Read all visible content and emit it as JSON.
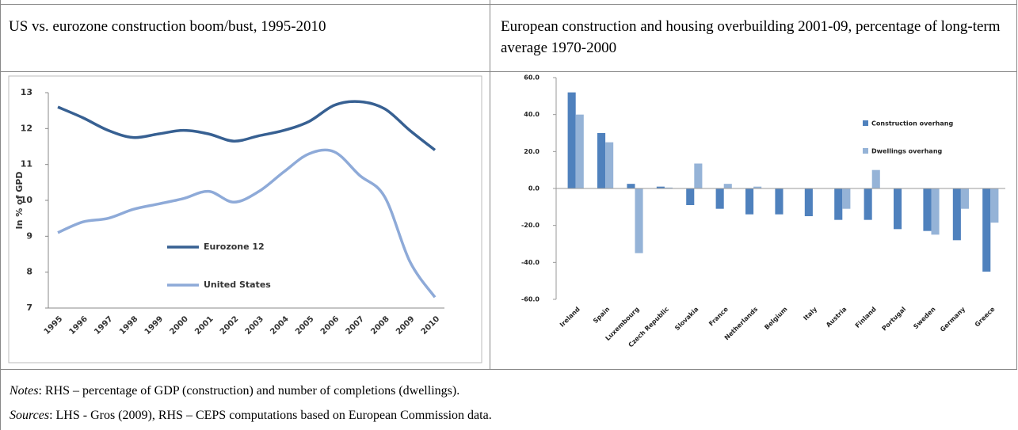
{
  "chart_data": [
    {
      "type": "line",
      "title": "US vs. eurozone construction boom/bust, 1995-2010",
      "y_label": "In % of GPD",
      "categories": [
        "1995",
        "1996",
        "1997",
        "1998",
        "1999",
        "2000",
        "2001",
        "2002",
        "2003",
        "2004",
        "2005",
        "2006",
        "2007",
        "2008",
        "2009",
        "2010"
      ],
      "series": [
        {
          "name": "Eurozone 12",
          "color": "#376092",
          "values": [
            12.6,
            12.3,
            11.95,
            11.75,
            11.85,
            11.95,
            11.85,
            11.65,
            11.8,
            11.95,
            12.2,
            12.65,
            12.75,
            12.55,
            11.95,
            11.4
          ]
        },
        {
          "name": "United States",
          "color": "#8eaad8",
          "values": [
            9.1,
            9.4,
            9.5,
            9.75,
            9.9,
            10.05,
            10.25,
            9.95,
            10.25,
            10.8,
            11.3,
            11.35,
            10.7,
            10.1,
            8.3,
            7.3
          ]
        }
      ],
      "ylim": [
        7,
        13
      ],
      "yticks": [
        7,
        8,
        9,
        10,
        11,
        12,
        13
      ],
      "grid": false,
      "legend": "left"
    },
    {
      "type": "bar",
      "title": "European construction and housing overbuilding 2001-09, percentage of long-term average 1970-2000",
      "categories": [
        "Ireland",
        "Spain",
        "Luxembourg",
        "Czech Republic",
        "Slovakia",
        "France",
        "Netherlands",
        "Belgium",
        "Italy",
        "Austria",
        "Finland",
        "Portugal",
        "Sweden",
        "Germany",
        "Greece"
      ],
      "series": [
        {
          "name": "Construction overhang",
          "color": "#4f81bd",
          "values": [
            52,
            30,
            2.5,
            1,
            -9,
            -11,
            -14,
            -14,
            -15,
            -17,
            -17,
            -22,
            -23,
            -28,
            -45
          ]
        },
        {
          "name": "Dwellings overhang",
          "color": "#95b3d7",
          "values": [
            40,
            25,
            -35,
            0.5,
            13.5,
            2.5,
            1,
            0,
            0,
            -11,
            10,
            0,
            -25,
            -11,
            -18.5
          ]
        }
      ],
      "ylim": [
        -60,
        60
      ],
      "yticks": [
        {
          "value": -60,
          "label": "-60.0"
        },
        {
          "value": -40,
          "label": "-40.0"
        },
        {
          "value": -20,
          "label": "-20.0"
        },
        {
          "value": 0,
          "label": "0.0"
        },
        {
          "value": 20,
          "label": "20.0"
        },
        {
          "value": 40,
          "label": "40.0"
        },
        {
          "value": 60,
          "label": "60.0"
        }
      ],
      "grid": false,
      "legend": "upper right"
    }
  ],
  "notes": {
    "label": "Notes",
    "text": ": RHS – percentage of GDP (construction) and number of completions (dwellings)."
  },
  "sources": {
    "label": "Sources",
    "text": ": LHS - Gros (2009), RHS – CEPS computations based on European Commission data."
  }
}
